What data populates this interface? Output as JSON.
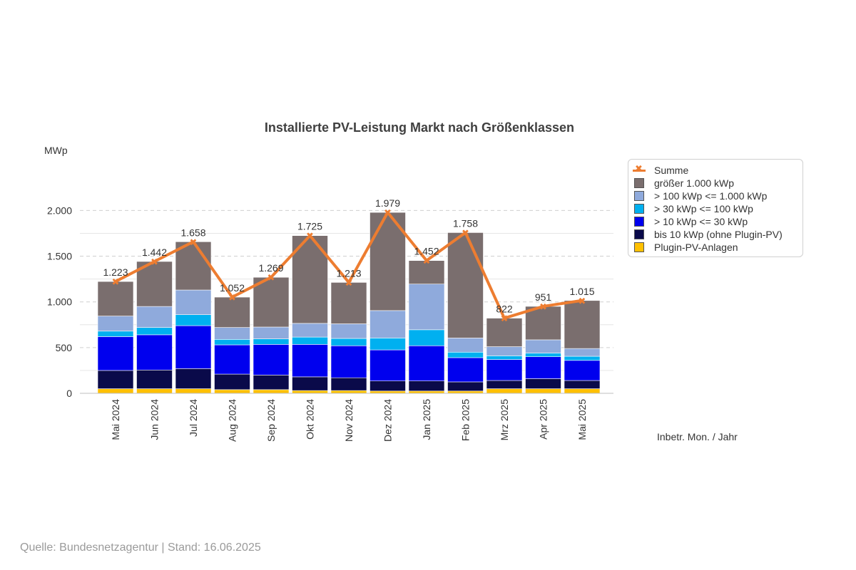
{
  "chart_data": {
    "type": "bar",
    "stacked": true,
    "title": "Installierte PV-Leistung Markt nach Größenklassen",
    "ylabel": "MWp",
    "xlabel": "Inbetr. Mon. / Jahr",
    "ylim": [
      0,
      2200
    ],
    "yticks": [
      0,
      500,
      1000,
      1500,
      2000
    ],
    "ytick_labels": [
      "0",
      "500",
      "1.000",
      "1.500",
      "2.000"
    ],
    "grid": true,
    "legend_position": "right",
    "categories": [
      "Mai 2024",
      "Jun 2024",
      "Jul 2024",
      "Aug 2024",
      "Sep 2024",
      "Okt 2024",
      "Nov 2024",
      "Dez 2024",
      "Jan 2025",
      "Feb 2025",
      "Mrz 2025",
      "Apr 2025",
      "Mai 2025"
    ],
    "series": [
      {
        "name": "Plugin-PV-Anlagen",
        "color": "#ffc000",
        "values": [
          50,
          50,
          50,
          40,
          40,
          30,
          30,
          25,
          25,
          25,
          50,
          50,
          50
        ]
      },
      {
        "name": "bis 10 kWp (ohne Plugin-PV)",
        "color": "#0a0a4a",
        "values": [
          200,
          205,
          220,
          170,
          160,
          150,
          140,
          110,
          110,
          100,
          90,
          110,
          90
        ]
      },
      {
        "name": "> 10 kWp <= 30 kWp",
        "color": "#0000ee",
        "values": [
          370,
          385,
          470,
          320,
          335,
          355,
          350,
          340,
          385,
          265,
          230,
          240,
          220
        ]
      },
      {
        "name": "> 30 kWp <= 100 kWp",
        "color": "#00b0f0",
        "values": [
          60,
          80,
          120,
          60,
          60,
          80,
          80,
          130,
          175,
          60,
          40,
          40,
          45
        ]
      },
      {
        "name": "> 100 kWp <= 1.000 kWp",
        "color": "#8faadc",
        "values": [
          165,
          230,
          270,
          130,
          130,
          150,
          160,
          300,
          500,
          155,
          100,
          145,
          85
        ]
      },
      {
        "name": "größer 1.000 kWp",
        "color": "#7a6e6e",
        "values": [
          378,
          492,
          528,
          332,
          544,
          960,
          453,
          1074,
          257,
          1153,
          312,
          366,
          525
        ]
      }
    ],
    "line": {
      "name": "Summe",
      "color": "#ed7d31",
      "values": [
        1223,
        1442,
        1658,
        1052,
        1269,
        1725,
        1213,
        1979,
        1452,
        1758,
        822,
        951,
        1015
      ]
    },
    "data_labels": [
      "1.223",
      "1.442",
      "1.658",
      "1.052",
      "1.269",
      "1.725",
      "1.213",
      "1.979",
      "1.452",
      "1.758",
      "822",
      "951",
      "1.015"
    ]
  },
  "legend": {
    "items": [
      {
        "label": "Summe",
        "kind": "line",
        "color": "#ed7d31"
      },
      {
        "label": "größer 1.000 kWp",
        "kind": "box",
        "color": "#7a6e6e"
      },
      {
        "label": "> 100 kWp <= 1.000 kWp",
        "kind": "box",
        "color": "#8faadc"
      },
      {
        "label": "> 30 kWp <= 100 kWp",
        "kind": "box",
        "color": "#00b0f0"
      },
      {
        "label": "> 10 kWp <= 30 kWp",
        "kind": "box",
        "color": "#0000ee"
      },
      {
        "label": "bis 10 kWp (ohne Plugin-PV)",
        "kind": "box",
        "color": "#0a0a4a"
      },
      {
        "label": "Plugin-PV-Anlagen",
        "kind": "box",
        "color": "#ffc000"
      }
    ]
  },
  "source": "Quelle: Bundesnetzagentur | Stand: 16.06.2025"
}
